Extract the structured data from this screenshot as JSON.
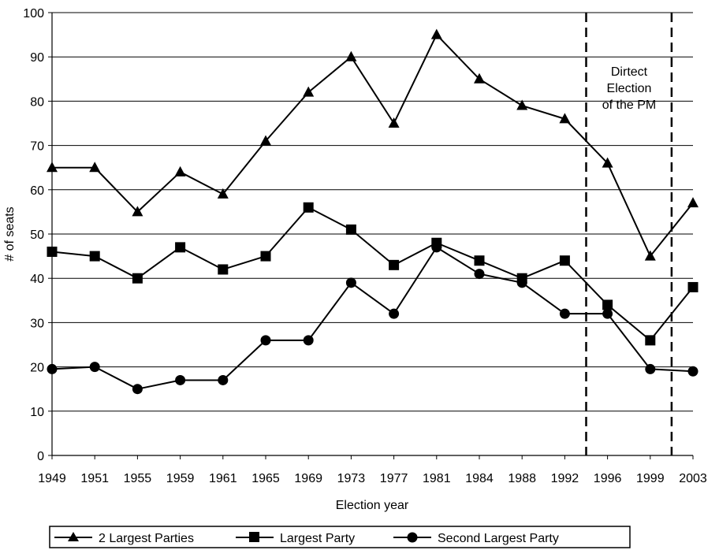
{
  "chart_data": {
    "type": "line",
    "xlabel": "Election year",
    "ylabel": "# of seats",
    "ylim": [
      0,
      100
    ],
    "y_ticks": [
      0,
      10,
      20,
      30,
      40,
      50,
      60,
      70,
      80,
      90,
      100
    ],
    "grid": "horizontal",
    "legend_position": "bottom",
    "categories": [
      "1949",
      "1951",
      "1955",
      "1959",
      "1961",
      "1965",
      "1969",
      "1973",
      "1977",
      "1981",
      "1984",
      "1988",
      "1992",
      "1996",
      "1999",
      "2003"
    ],
    "series": [
      {
        "name": "2 Largest Parties",
        "marker": "triangle",
        "values": [
          65,
          65,
          55,
          64,
          59,
          71,
          82,
          90,
          75,
          95,
          85,
          79,
          76,
          66,
          45,
          57
        ]
      },
      {
        "name": "Largest Party",
        "marker": "square",
        "values": [
          46,
          45,
          40,
          47,
          42,
          45,
          56,
          51,
          43,
          48,
          44,
          40,
          44,
          34,
          26,
          38
        ]
      },
      {
        "name": "Second Largest Party",
        "marker": "circle",
        "values": [
          19.5,
          20,
          15,
          17,
          17,
          26,
          26,
          39,
          32,
          47,
          41,
          39,
          32,
          32,
          19.5,
          19
        ]
      }
    ],
    "annotation": {
      "lines": [
        "Dirtect",
        "Election",
        "of the PM"
      ]
    },
    "reference_lines": [
      "1994",
      "2001"
    ]
  }
}
